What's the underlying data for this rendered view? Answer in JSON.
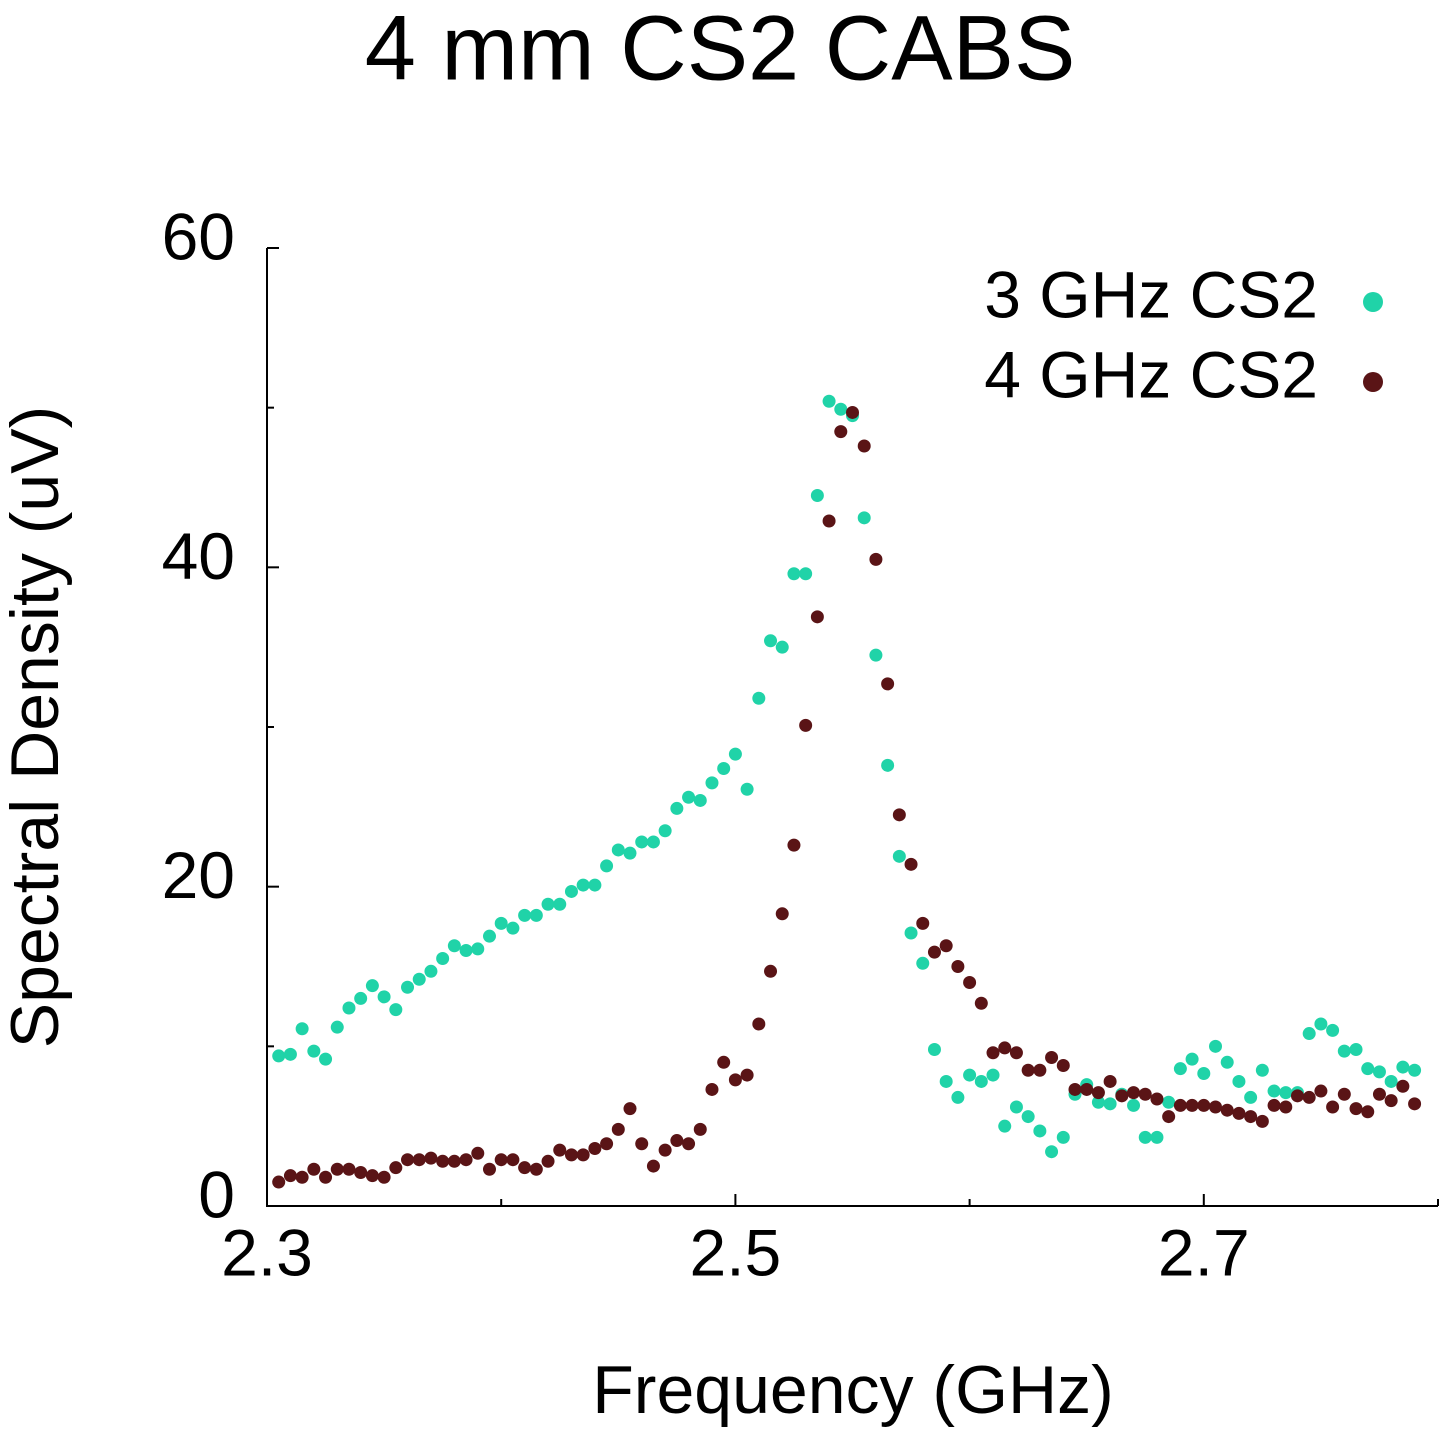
{
  "chart_data": {
    "type": "scatter",
    "title": "4 mm CS2 CABS",
    "x_label": "Frequency (GHz)",
    "y_label": "Spectral Density (uV)",
    "xlim": [
      2.3,
      2.8
    ],
    "ylim": [
      0,
      60
    ],
    "xticks": [
      2.3,
      2.5,
      2.7
    ],
    "yticks": [
      0,
      20,
      40,
      60
    ],
    "xminorticks": [
      2.4,
      2.6,
      2.8
    ],
    "yminorticks": [
      10,
      30,
      50
    ],
    "legend": "upper right",
    "x": [
      2.305,
      2.31,
      2.315,
      2.32,
      2.325,
      2.33,
      2.335,
      2.34,
      2.345,
      2.35,
      2.355,
      2.36,
      2.365,
      2.37,
      2.375,
      2.38,
      2.385,
      2.39,
      2.395,
      2.4,
      2.405,
      2.41,
      2.415,
      2.42,
      2.425,
      2.43,
      2.435,
      2.44,
      2.445,
      2.45,
      2.455,
      2.46,
      2.465,
      2.47,
      2.475,
      2.48,
      2.485,
      2.49,
      2.495,
      2.5,
      2.505,
      2.51,
      2.515,
      2.52,
      2.525,
      2.53,
      2.535,
      2.54,
      2.545,
      2.55,
      2.555,
      2.56,
      2.565,
      2.57,
      2.575,
      2.58,
      2.585,
      2.59,
      2.595,
      2.6,
      2.605,
      2.61,
      2.615,
      2.62,
      2.625,
      2.63,
      2.635,
      2.64,
      2.645,
      2.65,
      2.655,
      2.66,
      2.665,
      2.67,
      2.675,
      2.68,
      2.685,
      2.69,
      2.695,
      2.7,
      2.705,
      2.71,
      2.715,
      2.72,
      2.725,
      2.73,
      2.735,
      2.74,
      2.745,
      2.75,
      2.755,
      2.76,
      2.765,
      2.77,
      2.775,
      2.78,
      2.785,
      2.79
    ],
    "series": [
      {
        "name": "3 GHz CS2",
        "color": "#20d3a8",
        "values": [
          9.4,
          9.5,
          11.1,
          9.7,
          9.2,
          11.2,
          12.4,
          13.0,
          13.8,
          13.1,
          12.3,
          13.7,
          14.2,
          14.7,
          15.5,
          16.3,
          16.0,
          16.1,
          16.9,
          17.7,
          17.4,
          18.2,
          18.2,
          18.9,
          18.9,
          19.7,
          20.1,
          20.1,
          21.3,
          22.3,
          22.1,
          22.8,
          22.8,
          23.5,
          24.9,
          25.6,
          25.4,
          26.5,
          27.4,
          28.3,
          26.1,
          31.8,
          35.4,
          35.0,
          39.6,
          39.6,
          44.5,
          50.4,
          49.9,
          49.5,
          43.1,
          34.5,
          27.6,
          21.9,
          17.1,
          15.2,
          9.8,
          7.8,
          6.8,
          8.2,
          7.8,
          8.2,
          5.0,
          6.2,
          5.6,
          4.7,
          3.4,
          4.3,
          7.0,
          7.6,
          6.5,
          6.4,
          7.0,
          6.3,
          4.3,
          4.3,
          6.5,
          8.6,
          9.2,
          8.3,
          10.0,
          9.0,
          7.8,
          6.8,
          8.5,
          7.2,
          7.1,
          7.1,
          10.8,
          11.4,
          11.0,
          9.7,
          9.8,
          8.6,
          8.4,
          7.8,
          8.7,
          8.5
        ]
      },
      {
        "name": "4 GHz CS2",
        "color": "#5a1416",
        "values": [
          1.5,
          1.9,
          1.8,
          2.3,
          1.8,
          2.3,
          2.3,
          2.1,
          1.9,
          1.8,
          2.4,
          2.9,
          2.9,
          3.0,
          2.8,
          2.8,
          2.9,
          3.3,
          2.3,
          2.9,
          2.9,
          2.4,
          2.3,
          2.8,
          3.5,
          3.2,
          3.2,
          3.6,
          3.9,
          4.8,
          6.1,
          3.9,
          2.5,
          3.5,
          4.1,
          3.9,
          4.8,
          7.3,
          9.0,
          7.9,
          8.2,
          11.4,
          14.7,
          18.3,
          22.6,
          30.1,
          36.9,
          42.9,
          48.5,
          49.7,
          47.6,
          40.5,
          32.7,
          24.5,
          21.4,
          17.7,
          15.9,
          16.3,
          15.0,
          14.0,
          12.7,
          9.6,
          9.9,
          9.6,
          8.5,
          8.5,
          9.3,
          8.8,
          7.3,
          7.3,
          7.1,
          7.8,
          6.9,
          7.1,
          7.0,
          6.7,
          5.6,
          6.3,
          6.3,
          6.3,
          6.2,
          6.0,
          5.8,
          5.6,
          5.3,
          6.3,
          6.2,
          6.9,
          6.8,
          7.2,
          6.2,
          7.0,
          6.1,
          5.9,
          7.0,
          6.6,
          7.5,
          6.4
        ]
      }
    ]
  }
}
